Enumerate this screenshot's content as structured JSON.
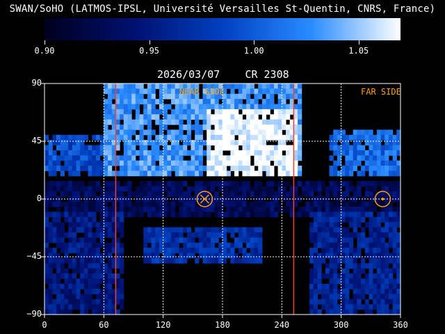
{
  "title": "SWAN/SoHO (LATMOS-IPSL, Université Versailles St-Quentin, CNRS, France)",
  "colorbar": {
    "min": 0.9,
    "max": 1.07,
    "tick_labels": [
      "0.90",
      "0.95",
      "1.00",
      "1.05"
    ],
    "tick_values": [
      0.9,
      0.95,
      1.0,
      1.05
    ],
    "colors": [
      "#00001e",
      "#001070",
      "#0040c0",
      "#2a8cff",
      "#ffffff"
    ]
  },
  "chart_data": {
    "type": "heatmap",
    "title": "2026/03/07",
    "subtitle": "CR 2308",
    "xlim": [
      0,
      360
    ],
    "ylim": [
      -90,
      90
    ],
    "x_ticks": [
      0,
      60,
      120,
      180,
      240,
      300,
      360
    ],
    "y_ticks": [
      90,
      45,
      0,
      -45,
      -90
    ],
    "x_tick_labels": [
      "0",
      "60",
      "120",
      "180",
      "240",
      "300",
      "360"
    ],
    "y_tick_labels": [
      "90",
      "45",
      "0",
      "−45",
      "−90"
    ],
    "grid": true,
    "annotations": {
      "near_side_label": "NEAR SIDE",
      "far_side_label": "FAR SIDE",
      "near_side_marker": {
        "x": 162,
        "y": 0
      },
      "far_side_marker": {
        "x": 342,
        "y": 0
      },
      "boundary_lines_x": [
        72,
        252
      ]
    },
    "regions": [
      {
        "name": "north-near-bright",
        "lon": [
          60,
          260
        ],
        "lat": [
          20,
          90
        ],
        "level": 1.03
      },
      {
        "name": "north-near-peak",
        "lon": [
          165,
          255
        ],
        "lat": [
          20,
          70
        ],
        "level": 1.07
      },
      {
        "name": "north-far",
        "lon": [
          290,
          360
        ],
        "lat": [
          20,
          55
        ],
        "level": 1.01
      },
      {
        "name": "north-west",
        "lon": [
          0,
          60
        ],
        "lat": [
          20,
          50
        ],
        "level": 0.99
      },
      {
        "name": "mid-band",
        "lon": [
          0,
          360
        ],
        "lat": [
          -15,
          15
        ],
        "level": 0.93
      },
      {
        "name": "south-center",
        "lon": [
          100,
          220
        ],
        "lat": [
          -50,
          -20
        ],
        "level": 0.97
      },
      {
        "name": "south-west",
        "lon": [
          0,
          80
        ],
        "lat": [
          -90,
          -10
        ],
        "level": 0.95
      },
      {
        "name": "south-east",
        "lon": [
          270,
          360
        ],
        "lat": [
          -90,
          -10
        ],
        "level": 0.96
      }
    ]
  }
}
